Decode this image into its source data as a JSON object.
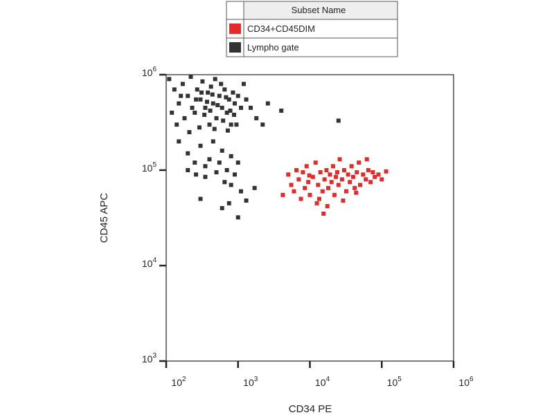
{
  "chart_data": {
    "type": "scatter",
    "xlabel": "CD34 PE",
    "ylabel": "CD45 APC",
    "legend_title": "Subset Name",
    "xscale": "log",
    "yscale": "log",
    "xlim": [
      100,
      1000000
    ],
    "ylim": [
      1000,
      1000000
    ],
    "xticks": [
      {
        "value": 100,
        "label": "10",
        "exponent": "2"
      },
      {
        "value": 1000,
        "label": "10",
        "exponent": "3"
      },
      {
        "value": 10000,
        "label": "10",
        "exponent": "4"
      },
      {
        "value": 100000,
        "label": "10",
        "exponent": "5"
      },
      {
        "value": 1000000,
        "label": "10",
        "exponent": "6"
      }
    ],
    "yticks": [
      {
        "value": 1000,
        "label": "10",
        "exponent": "3"
      },
      {
        "value": 10000,
        "label": "10",
        "exponent": "4"
      },
      {
        "value": 100000,
        "label": "10",
        "exponent": "5"
      },
      {
        "value": 1000000,
        "label": "10",
        "exponent": "6"
      }
    ],
    "series": [
      {
        "name": "CD34+CD45DIM",
        "color": "#e52a2a",
        "x": [
          4200,
          5000,
          5500,
          6000,
          6500,
          7000,
          7500,
          8000,
          8500,
          9000,
          9500,
          10000,
          11000,
          12000,
          12500,
          13000,
          14000,
          15000,
          15500,
          16000,
          17000,
          18000,
          19000,
          20000,
          21000,
          22000,
          23000,
          24000,
          25000,
          26000,
          28000,
          30000,
          32000,
          34000,
          36000,
          38000,
          40000,
          42000,
          45000,
          48000,
          50000,
          55000,
          60000,
          65000,
          70000,
          75000,
          80000,
          90000,
          100000,
          115000,
          13500,
          17500,
          29000,
          9800,
          44000,
          62000
        ],
        "values": [
          55000,
          90000,
          70000,
          60000,
          100000,
          80000,
          50000,
          95000,
          65000,
          110000,
          75000,
          55000,
          85000,
          120000,
          45000,
          70000,
          95000,
          60000,
          35000,
          80000,
          100000,
          65000,
          90000,
          75000,
          110000,
          55000,
          85000,
          95000,
          70000,
          130000,
          80000,
          100000,
          60000,
          90000,
          75000,
          110000,
          85000,
          65000,
          95000,
          120000,
          70000,
          90000,
          80000,
          100000,
          75000,
          95000,
          85000,
          90000,
          80000,
          97000,
          50000,
          42000,
          48000,
          88000,
          58000,
          130000
        ]
      },
      {
        "name": "Lympho gate",
        "color": "#333333",
        "x": [
          110,
          130,
          150,
          170,
          200,
          220,
          250,
          270,
          300,
          320,
          350,
          380,
          400,
          420,
          450,
          480,
          500,
          550,
          600,
          650,
          700,
          750,
          800,
          850,
          900,
          120,
          140,
          160,
          180,
          210,
          230,
          260,
          290,
          310,
          340,
          370,
          410,
          440,
          470,
          520,
          580,
          620,
          680,
          720,
          780,
          880,
          950,
          1000,
          1100,
          1200,
          1300,
          1500,
          1800,
          2200,
          2600,
          4000,
          25000,
          150,
          200,
          250,
          300,
          350,
          400,
          450,
          500,
          550,
          600,
          700,
          800,
          900,
          1000,
          200,
          260,
          350,
          650,
          300,
          800,
          1100,
          600,
          750,
          1000,
          1300,
          1700
        ],
        "values": [
          900000,
          700000,
          500000,
          800000,
          600000,
          950000,
          400000,
          700000,
          550000,
          850000,
          450000,
          650000,
          300000,
          750000,
          500000,
          900000,
          350000,
          600000,
          450000,
          700000,
          400000,
          550000,
          300000,
          650000,
          500000,
          400000,
          300000,
          600000,
          350000,
          250000,
          450000,
          550000,
          280000,
          650000,
          380000,
          520000,
          420000,
          620000,
          270000,
          480000,
          800000,
          330000,
          580000,
          260000,
          420000,
          380000,
          300000,
          600000,
          450000,
          800000,
          550000,
          450000,
          350000,
          300000,
          500000,
          420000,
          330000,
          200000,
          150000,
          120000,
          180000,
          110000,
          130000,
          200000,
          95000,
          120000,
          160000,
          100000,
          140000,
          90000,
          120000,
          100000,
          90000,
          85000,
          75000,
          50000,
          70000,
          60000,
          40000,
          45000,
          32000,
          48000,
          65000
        ]
      }
    ]
  }
}
